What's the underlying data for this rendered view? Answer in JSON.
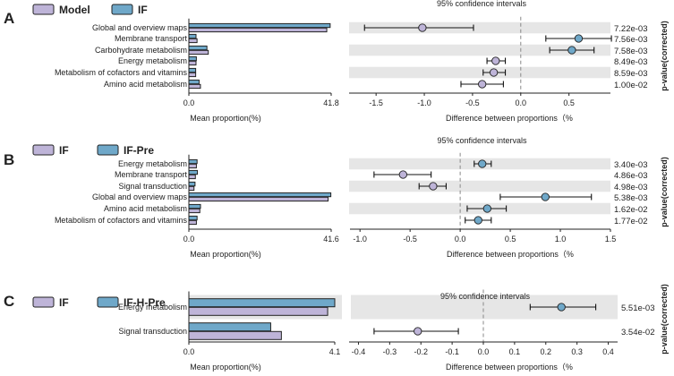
{
  "colors": {
    "group_a": "#BEB4D8",
    "group_b": "#6FA8C9",
    "band": "#E6E6E6",
    "axis": "#222222",
    "zero_line": "#888888"
  },
  "y_side_label": "p-value(corrected)",
  "chart_data": [
    {
      "type": "bar",
      "panel_label": "A",
      "legend": [
        "Model",
        "IF"
      ],
      "categories": [
        "Global and overview maps",
        "Membrane transport",
        "Carbohydrate metabolism",
        "Energy metabolism",
        "Metabolism of cofactors and vitamins",
        "Amino acid metabolism"
      ],
      "series": [
        {
          "name": "Model",
          "values": [
            40.5,
            2.4,
            5.7,
            2.1,
            2.0,
            3.4
          ]
        },
        {
          "name": "IF",
          "values": [
            41.5,
            2.1,
            5.3,
            2.2,
            2.0,
            3.0
          ]
        }
      ],
      "bar_xlabel": "Mean proportion(%)",
      "bar_ticks": [
        "0.0",
        "41.8"
      ],
      "bar_max": 41.8,
      "ci_title": "95% confidence intervals",
      "ci_xlabel": "Difference between proportions（%",
      "ci_ticks": [
        -1.5,
        -1.0,
        -0.5,
        0.0,
        0.5
      ],
      "ci_tick_labels": [
        "-1.5",
        "-1.0",
        "-0.5",
        "0.0",
        "0.5"
      ],
      "ci_range": [
        -1.78,
        0.93
      ],
      "diff": [
        -1.02,
        0.6,
        0.53,
        -0.26,
        -0.28,
        -0.4
      ],
      "ci_low": [
        -1.62,
        0.26,
        0.3,
        -0.35,
        -0.39,
        -0.62
      ],
      "ci_high": [
        -0.49,
        0.94,
        0.76,
        -0.16,
        -0.16,
        -0.18
      ],
      "point_group": [
        0,
        1,
        1,
        0,
        0,
        0
      ],
      "p_values": [
        "7.22e-03",
        "7.56e-03",
        "7.58e-03",
        "8.49e-03",
        "8.59e-03",
        "1.00e-02"
      ]
    },
    {
      "type": "bar",
      "panel_label": "B",
      "legend": [
        "IF",
        "IF-Pre"
      ],
      "categories": [
        "Energy metabolism",
        "Membrane transport",
        "Signal transduction",
        "Global and overview maps",
        "Amino acid metabolism",
        "Metabolism of cofactors and vitamins"
      ],
      "series": [
        {
          "name": "IF",
          "values": [
            2.2,
            1.9,
            1.5,
            40.7,
            3.2,
            2.2
          ]
        },
        {
          "name": "IF-Pre",
          "values": [
            2.4,
            2.5,
            1.8,
            41.5,
            3.4,
            2.4
          ]
        }
      ],
      "bar_xlabel": "Mean proportion(%)",
      "bar_ticks": [
        "0.0",
        "41.6"
      ],
      "bar_max": 41.6,
      "ci_title": "95% confidence intervals",
      "ci_xlabel": "Difference between proportions（%",
      "ci_ticks": [
        -1.0,
        -0.5,
        0.0,
        0.5,
        1.0,
        1.5
      ],
      "ci_tick_labels": [
        "-1.0",
        "-0.5",
        "0.0",
        "0.5",
        "1.0",
        "1.5"
      ],
      "ci_range": [
        -1.1,
        1.5
      ],
      "diff": [
        0.22,
        -0.57,
        -0.27,
        0.85,
        0.27,
        0.18
      ],
      "ci_low": [
        0.14,
        -0.86,
        -0.41,
        0.4,
        0.07,
        0.05
      ],
      "ci_high": [
        0.31,
        -0.29,
        -0.14,
        1.31,
        0.46,
        0.31
      ],
      "point_group": [
        1,
        0,
        0,
        1,
        1,
        1
      ],
      "p_values": [
        "3.40e-03",
        "4.86e-03",
        "4.98e-03",
        "5.38e-03",
        "1.62e-02",
        "1.77e-02"
      ]
    },
    {
      "type": "bar",
      "panel_label": "C",
      "legend": [
        "IF",
        "IF-H-Pre"
      ],
      "categories": [
        "Energy metabolism",
        "Signal transduction"
      ],
      "series": [
        {
          "name": "IF",
          "values": [
            3.9,
            2.6
          ]
        },
        {
          "name": "IF-H-Pre",
          "values": [
            4.1,
            2.3
          ]
        }
      ],
      "bar_xlabel": "Mean proportion(%)",
      "bar_ticks": [
        "0.0",
        "4.1"
      ],
      "bar_max": 4.1,
      "ci_title": "95% confidence intervals",
      "ci_xlabel": "Difference between proportions（%",
      "ci_ticks": [
        -0.4,
        -0.3,
        -0.2,
        -0.1,
        0.0,
        0.1,
        0.2,
        0.3,
        0.4
      ],
      "ci_tick_labels": [
        "-0.4",
        "-0.3",
        "-0.2",
        "-0.1",
        "0.0",
        "0.1",
        "0.2",
        "0.3",
        "0.4"
      ],
      "ci_range": [
        -0.43,
        0.43
      ],
      "diff": [
        0.25,
        -0.21
      ],
      "ci_low": [
        0.15,
        -0.35
      ],
      "ci_high": [
        0.36,
        -0.08
      ],
      "point_group": [
        1,
        0
      ],
      "p_values": [
        "5.51e-03",
        "3.54e-02"
      ]
    }
  ]
}
